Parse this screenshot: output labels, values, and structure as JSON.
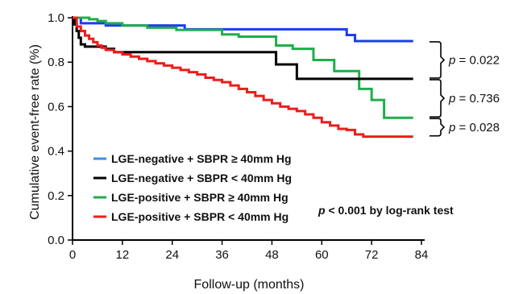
{
  "chart_data": {
    "type": "line",
    "title": "",
    "xlabel": "Follow-up (months)",
    "ylabel": "Cumulative event-free rate (%)",
    "xlim": [
      0,
      84
    ],
    "ylim": [
      0,
      1.0
    ],
    "x_ticks": [
      "0",
      "12",
      "24",
      "36",
      "48",
      "60",
      "72",
      "84"
    ],
    "y_ticks": [
      "0.0",
      "0.2",
      "0.4",
      "0.6",
      "0.8",
      "1.0"
    ],
    "grid": false,
    "legend_position": "bottom-left",
    "series": [
      {
        "name": "LGE-negative + SBPR ≥ 40mm Hg",
        "color": "#1a3cf0",
        "legend_color": "#3a8ee6",
        "x": [
          0,
          2,
          8,
          27,
          66,
          68,
          82
        ],
        "y": [
          1.0,
          0.975,
          0.965,
          0.948,
          0.922,
          0.895,
          0.895
        ]
      },
      {
        "name": "LGE-negative + SBPR < 40mm Hg",
        "color": "#000000",
        "legend_color": "#000000",
        "x": [
          0,
          0.5,
          1,
          1.5,
          2,
          3,
          5,
          8,
          10,
          12,
          48,
          49,
          53,
          54,
          68,
          82
        ],
        "y": [
          1.0,
          0.97,
          0.94,
          0.91,
          0.88,
          0.87,
          0.87,
          0.86,
          0.845,
          0.845,
          0.845,
          0.79,
          0.79,
          0.725,
          0.725,
          0.725
        ]
      },
      {
        "name": "LGE-positive + SBPR ≥ 40mm Hg",
        "color": "#1fae4b",
        "legend_color": "#1fae4b",
        "x": [
          0,
          4,
          6,
          8,
          12,
          18,
          25,
          36,
          40,
          49,
          53,
          58,
          63,
          69,
          72,
          75,
          82
        ],
        "y": [
          1.0,
          0.993,
          0.985,
          0.975,
          0.965,
          0.955,
          0.945,
          0.925,
          0.915,
          0.875,
          0.86,
          0.81,
          0.76,
          0.68,
          0.63,
          0.55,
          0.55
        ]
      },
      {
        "name": "LGE-positive + SBPR < 40mm Hg",
        "color": "#ee1c1c",
        "legend_color": "#ee1c1c",
        "x": [
          0,
          1,
          2,
          3,
          4,
          5,
          6,
          7,
          8,
          10,
          12,
          14,
          16,
          18,
          20,
          22,
          24,
          26,
          28,
          30,
          32,
          34,
          36,
          38,
          40,
          42,
          44,
          46,
          48,
          50,
          52,
          54,
          56,
          58,
          60,
          62,
          64,
          66,
          68,
          70,
          72,
          82
        ],
        "y": [
          1.0,
          0.96,
          0.94,
          0.92,
          0.905,
          0.89,
          0.875,
          0.865,
          0.855,
          0.845,
          0.835,
          0.825,
          0.815,
          0.805,
          0.795,
          0.785,
          0.775,
          0.765,
          0.755,
          0.745,
          0.73,
          0.72,
          0.71,
          0.695,
          0.68,
          0.665,
          0.648,
          0.63,
          0.615,
          0.6,
          0.59,
          0.58,
          0.565,
          0.55,
          0.53,
          0.515,
          0.5,
          0.495,
          0.475,
          0.465,
          0.465,
          0.465
        ]
      }
    ],
    "annotations": {
      "brackets": [
        {
          "label": "p = 0.022",
          "y_top": 0.895,
          "y_bottom": 0.725
        },
        {
          "label": "p = 0.736",
          "y_top": 0.725,
          "y_bottom": 0.55
        },
        {
          "label": "p = 0.028",
          "y_top": 0.55,
          "y_bottom": 0.465
        }
      ],
      "logrank": "p < 0.001 by log-rank test"
    }
  }
}
